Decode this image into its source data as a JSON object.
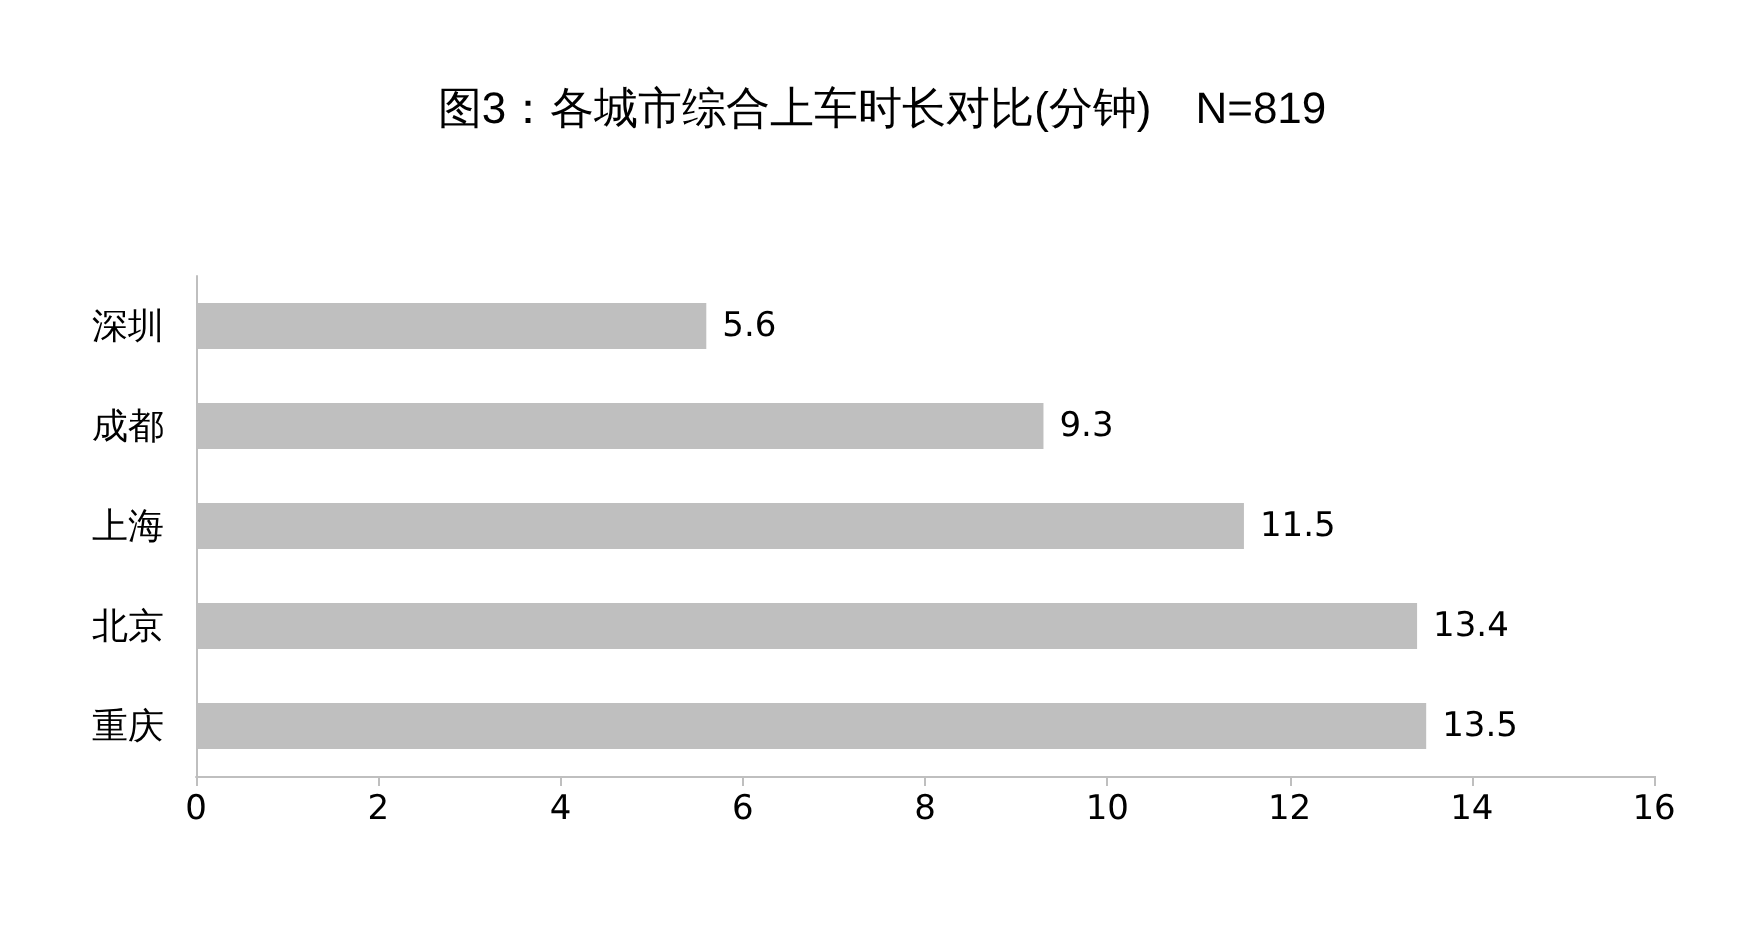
{
  "chart_data": {
    "type": "bar",
    "orientation": "horizontal",
    "title": "图3：各城市综合上车时长对比(分钟)　N=819",
    "categories": [
      "深圳",
      "成都",
      "上海",
      "北京",
      "重庆"
    ],
    "values": [
      5.6,
      9.3,
      11.5,
      13.4,
      13.5
    ],
    "color": "#bfbfbf",
    "xlim": [
      0,
      16
    ],
    "xticks": [
      0,
      2,
      4,
      6,
      8,
      10,
      12,
      14,
      16
    ],
    "grid": false,
    "data_labels": true
  }
}
